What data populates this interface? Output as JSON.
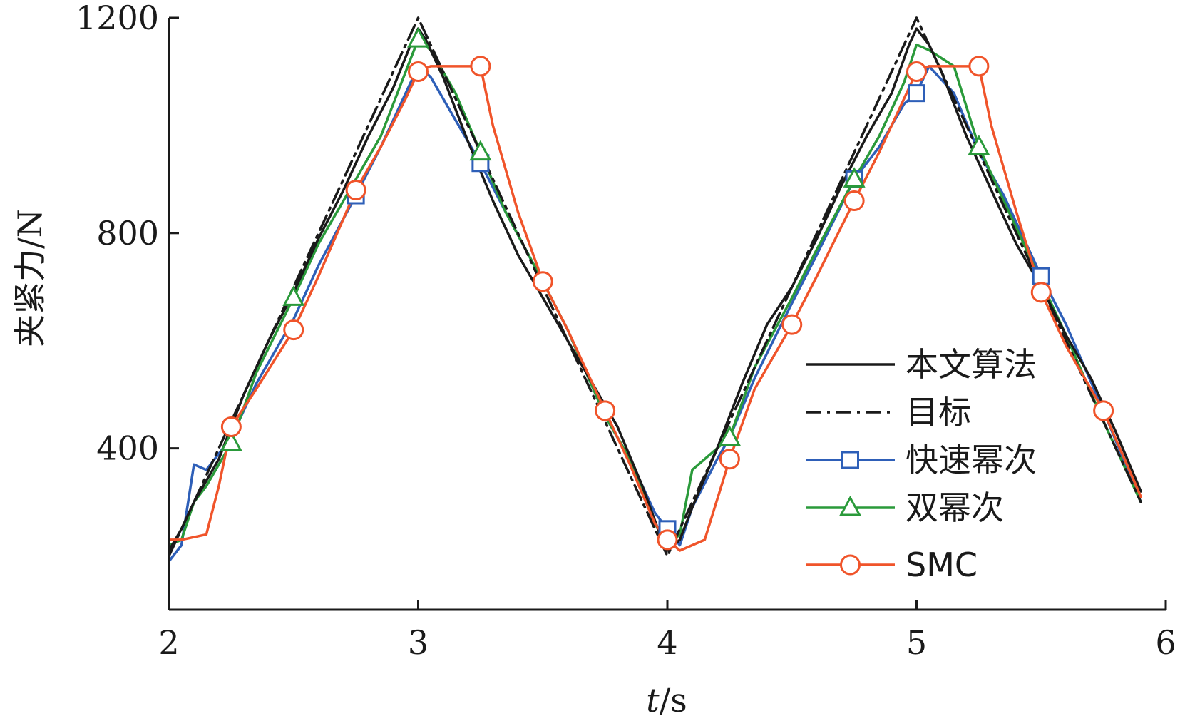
{
  "chart_data": {
    "type": "line",
    "xlabel_italic": "t",
    "xlabel_rest": "/s",
    "ylabel": "夹紧力/N",
    "xlim": [
      2,
      6
    ],
    "ylim": [
      100,
      1200
    ],
    "xticks": [
      2,
      3,
      4,
      5,
      6
    ],
    "xtick_labels": [
      "2",
      "3",
      "4",
      "5",
      "6"
    ],
    "yticks": [
      400,
      800,
      1200
    ],
    "ytick_labels": [
      "400",
      "800",
      "1200"
    ],
    "grid": false,
    "legend_position": "right",
    "series": [
      {
        "name": "本文算法",
        "color": "#1a1a1a",
        "dash": "solid",
        "marker": "none",
        "x": [
          2.0,
          2.05,
          2.1,
          2.2,
          2.3,
          2.4,
          2.5,
          2.6,
          2.7,
          2.8,
          2.9,
          2.97,
          3.0,
          3.03,
          3.1,
          3.2,
          3.3,
          3.4,
          3.5,
          3.6,
          3.7,
          3.8,
          3.9,
          3.97,
          4.0,
          4.05,
          4.1,
          4.2,
          4.3,
          4.4,
          4.5,
          4.6,
          4.7,
          4.8,
          4.9,
          4.97,
          5.0,
          5.05,
          5.1,
          5.2,
          5.3,
          5.4,
          5.5,
          5.6,
          5.7,
          5.8,
          5.9
        ],
        "y": [
          210,
          250,
          300,
          380,
          500,
          600,
          690,
          790,
          880,
          980,
          1070,
          1150,
          1180,
          1160,
          1090,
          970,
          860,
          760,
          680,
          600,
          520,
          440,
          330,
          240,
          210,
          230,
          290,
          400,
          520,
          630,
          700,
          790,
          890,
          980,
          1060,
          1150,
          1180,
          1150,
          1100,
          980,
          880,
          780,
          700,
          610,
          530,
          430,
          320
        ]
      },
      {
        "name": "目标",
        "color": "#1a1a1a",
        "dash": "dashdot",
        "marker": "none",
        "x": [
          2.0,
          3.0,
          4.0,
          5.0,
          5.9
        ],
        "y": [
          200,
          1200,
          200,
          1200,
          300
        ]
      },
      {
        "name": "快速幂次",
        "color": "#2e5fb8",
        "dash": "solid",
        "marker": "square",
        "x": [
          2.0,
          2.05,
          2.1,
          2.15,
          2.25,
          2.35,
          2.5,
          2.6,
          2.75,
          2.85,
          2.95,
          3.0,
          3.05,
          3.15,
          3.25,
          3.35,
          3.5,
          3.6,
          3.75,
          3.85,
          3.95,
          4.0,
          4.05,
          4.1,
          4.2,
          4.25,
          4.35,
          4.5,
          4.6,
          4.75,
          4.85,
          4.95,
          5.0,
          5.05,
          5.15,
          5.25,
          5.35,
          5.5,
          5.6,
          5.75,
          5.9
        ],
        "y": [
          190,
          220,
          370,
          360,
          420,
          520,
          640,
          740,
          870,
          960,
          1060,
          1110,
          1090,
          1010,
          930,
          840,
          710,
          620,
          460,
          380,
          280,
          250,
          220,
          290,
          380,
          420,
          530,
          670,
          760,
          900,
          960,
          1040,
          1060,
          1110,
          1060,
          950,
          870,
          720,
          630,
          470,
          300
        ],
        "marker_x": [
          2.75,
          3.25,
          4.0,
          4.75,
          5.0,
          5.5
        ],
        "marker_y": [
          870,
          930,
          250,
          900,
          1060,
          720
        ]
      },
      {
        "name": "双幂次",
        "color": "#2a9a3a",
        "dash": "solid",
        "marker": "triangle",
        "x": [
          2.0,
          2.05,
          2.1,
          2.15,
          2.25,
          2.35,
          2.5,
          2.6,
          2.75,
          2.85,
          2.95,
          3.0,
          3.05,
          3.15,
          3.25,
          3.35,
          3.5,
          3.6,
          3.75,
          3.85,
          3.95,
          4.0,
          4.05,
          4.1,
          4.2,
          4.25,
          4.35,
          4.5,
          4.6,
          4.75,
          4.85,
          4.95,
          5.0,
          5.05,
          5.15,
          5.25,
          5.35,
          5.5,
          5.6,
          5.75,
          5.9
        ],
        "y": [
          220,
          230,
          300,
          330,
          410,
          540,
          680,
          780,
          900,
          980,
          1100,
          1160,
          1140,
          1060,
          950,
          840,
          710,
          620,
          460,
          380,
          260,
          220,
          240,
          360,
          400,
          420,
          550,
          680,
          770,
          900,
          980,
          1080,
          1150,
          1140,
          1110,
          960,
          860,
          710,
          610,
          450,
          300
        ],
        "marker_x": [
          2.25,
          2.5,
          3.0,
          3.25,
          4.25,
          4.75,
          5.25
        ],
        "marker_y": [
          410,
          680,
          1160,
          950,
          420,
          900,
          960
        ]
      },
      {
        "name": "SMC",
        "color": "#f0542a",
        "dash": "solid",
        "marker": "circle",
        "x": [
          2.0,
          2.05,
          2.15,
          2.2,
          2.25,
          2.35,
          2.5,
          2.6,
          2.75,
          2.85,
          2.95,
          3.0,
          3.05,
          3.15,
          3.25,
          3.3,
          3.4,
          3.5,
          3.6,
          3.75,
          3.85,
          3.95,
          4.0,
          4.05,
          4.15,
          4.25,
          4.35,
          4.5,
          4.6,
          4.75,
          4.85,
          4.95,
          5.0,
          5.05,
          5.15,
          5.25,
          5.3,
          5.4,
          5.5,
          5.6,
          5.75,
          5.9
        ],
        "y": [
          230,
          230,
          240,
          330,
          440,
          510,
          620,
          720,
          880,
          960,
          1050,
          1100,
          1110,
          1110,
          1110,
          1000,
          840,
          710,
          620,
          470,
          370,
          260,
          230,
          210,
          230,
          380,
          510,
          630,
          720,
          860,
          950,
          1050,
          1100,
          1110,
          1110,
          1110,
          1000,
          840,
          690,
          590,
          470,
          310
        ],
        "marker_x": [
          2.25,
          2.5,
          2.75,
          3.0,
          3.25,
          3.5,
          3.75,
          4.0,
          4.25,
          4.5,
          4.75,
          5.0,
          5.25,
          5.5,
          5.75
        ],
        "marker_y": [
          440,
          620,
          880,
          1100,
          1110,
          710,
          470,
          230,
          380,
          630,
          860,
          1100,
          1110,
          690,
          470
        ]
      }
    ]
  }
}
